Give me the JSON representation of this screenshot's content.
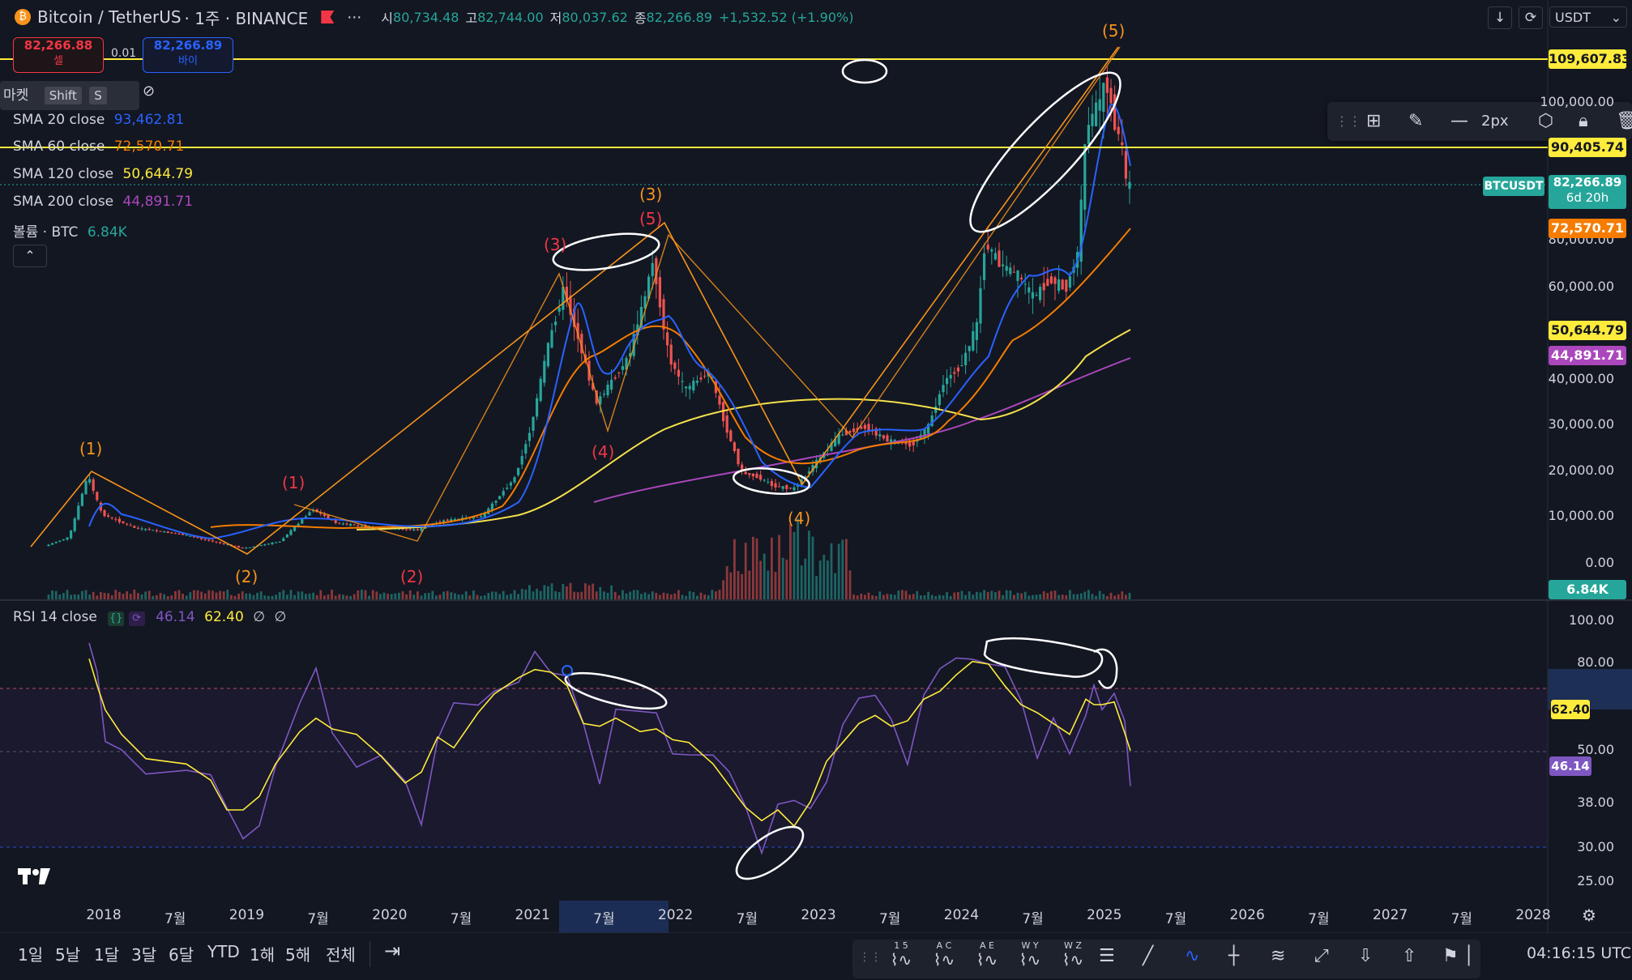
{
  "header": {
    "symbol": "Bitcoin / TetherUS",
    "interval": "· 1주 · BINANCE",
    "ohlc": [
      {
        "k": "시",
        "v": "80,734.48"
      },
      {
        "k": "고",
        "v": "82,744.00"
      },
      {
        "k": "저",
        "v": "80,037.62"
      },
      {
        "k": "종",
        "v": "82,266.89"
      }
    ],
    "change": "+1,532.52 (+1.90%)",
    "currency": "USDT"
  },
  "trade": {
    "sell_price": "82,266.88",
    "sell_label": "셀",
    "spread": "0.01",
    "buy_price": "82,266.89",
    "buy_label": "바이"
  },
  "market_bar": {
    "label": "마켓",
    "shift": "Shift",
    "s": "S"
  },
  "legend": {
    "sma20": {
      "label": "SMA 20 close",
      "value": "93,462.81",
      "color": "#2962ff"
    },
    "sma60": {
      "label": "SMA 60 close",
      "value": "72,570.71",
      "color": "#f7525f"
    },
    "sma120": {
      "label": "SMA 120 close",
      "value": "50,644.79",
      "color": "#ffeb3b"
    },
    "sma200": {
      "label": "SMA 200 close",
      "value": "44,891.71",
      "color": "#9c27b0"
    },
    "volume": {
      "label": "볼륨 · BTC",
      "value": "6.84K"
    }
  },
  "drawing_toolbar": {
    "width_label": "2px"
  },
  "price_axis": [
    "100,000.00",
    "90,000.00",
    "80,000.00",
    "70,000.00",
    "60,000.00",
    "50,000.00",
    "40,000.00",
    "30,000.00",
    "20,000.00",
    "10,000.00",
    "0.00"
  ],
  "price_tags": {
    "hline1": "109,607.83",
    "hline2": "90,405.74",
    "last_symbol": "BTCUSDT",
    "last_price": "82,266.89",
    "countdown": "6d 20h",
    "sma60": "72,570.71",
    "sma120": "50,644.79",
    "sma200": "44,891.71",
    "volume": "6.84K"
  },
  "wave_labels": {
    "orange": [
      "(1)",
      "(2)",
      "(3)",
      "(4)",
      "(5)"
    ],
    "red": [
      "(1)",
      "(2)",
      "(3)",
      "(4)",
      "(5)"
    ]
  },
  "rsi": {
    "label": "RSI 14 close",
    "value": "46.14",
    "ma_value": "62.40",
    "extra1": "∅",
    "extra2": "∅",
    "axis": [
      "100.00",
      "80.00",
      "62.40",
      "50.00",
      "46.14",
      "38.00",
      "30.00",
      "25.00"
    ],
    "value_color": "#7e57c2",
    "ma_color": "#ffeb3b"
  },
  "time_axis": [
    "2018",
    "7월",
    "2019",
    "7월",
    "2020",
    "7월",
    "2021",
    "7월",
    "2022",
    "7월",
    "2023",
    "7월",
    "2024",
    "7월",
    "2025",
    "7월",
    "2026",
    "7월",
    "2027",
    "7월",
    "2028"
  ],
  "timeframes": [
    "1일",
    "5날",
    "1달",
    "3달",
    "6달",
    "YTD",
    "1해",
    "5해",
    "전체"
  ],
  "clock": "04:16:15 UTC",
  "tool_letters": [
    "1 5",
    "A C",
    "A E",
    "W Y",
    "W Z"
  ],
  "colors": {
    "up": "#26a69a",
    "down": "#ef5350",
    "bg": "#131722",
    "accent": "#2962ff",
    "hline": "#ffeb3b",
    "wave_orange": "#f7931a",
    "wave_red": "#f23645"
  }
}
